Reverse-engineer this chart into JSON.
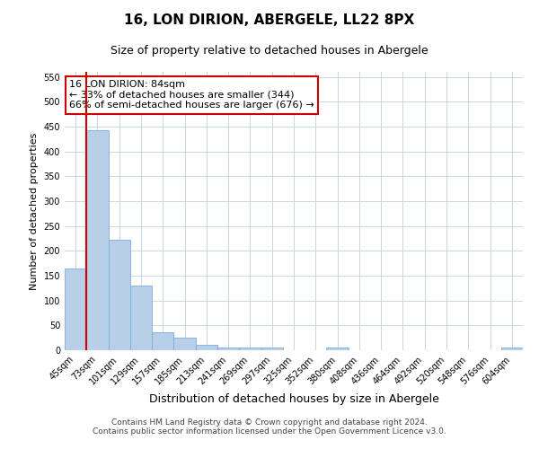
{
  "title": "16, LON DIRION, ABERGELE, LL22 8PX",
  "subtitle": "Size of property relative to detached houses in Abergele",
  "xlabel": "Distribution of detached houses by size in Abergele",
  "ylabel": "Number of detached properties",
  "footer_line1": "Contains HM Land Registry data © Crown copyright and database right 2024.",
  "footer_line2": "Contains public sector information licensed under the Open Government Licence v3.0.",
  "categories": [
    "45sqm",
    "73sqm",
    "101sqm",
    "129sqm",
    "157sqm",
    "185sqm",
    "213sqm",
    "241sqm",
    "269sqm",
    "297sqm",
    "325sqm",
    "352sqm",
    "380sqm",
    "408sqm",
    "436sqm",
    "464sqm",
    "492sqm",
    "520sqm",
    "548sqm",
    "576sqm",
    "604sqm"
  ],
  "values": [
    165,
    443,
    222,
    130,
    37,
    25,
    10,
    5,
    5,
    5,
    0,
    0,
    5,
    0,
    0,
    0,
    0,
    0,
    0,
    0,
    5
  ],
  "bar_color": "#b8cfe8",
  "bar_edgecolor": "#7aabe0",
  "vline_color": "#cc0000",
  "vline_x_index": 1,
  "annotation_line1": "16 LON DIRION: 84sqm",
  "annotation_line2": "← 33% of detached houses are smaller (344)",
  "annotation_line3": "66% of semi-detached houses are larger (676) →",
  "annotation_box_color": "#ffffff",
  "annotation_box_edgecolor": "#cc0000",
  "ylim": [
    0,
    560
  ],
  "yticks": [
    0,
    50,
    100,
    150,
    200,
    250,
    300,
    350,
    400,
    450,
    500,
    550
  ],
  "grid_color": "#c8d8e8",
  "background_color": "#ffffff",
  "title_fontsize": 11,
  "subtitle_fontsize": 9,
  "annotation_fontsize": 8,
  "footer_fontsize": 6.5,
  "ylabel_fontsize": 8,
  "xlabel_fontsize": 9,
  "tick_fontsize": 7
}
